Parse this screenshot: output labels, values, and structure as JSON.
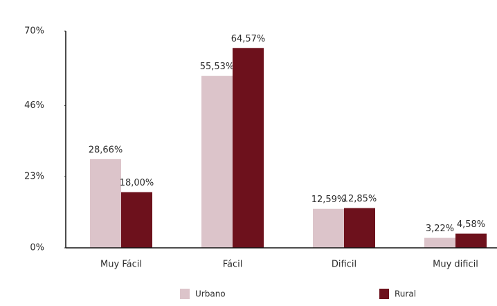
{
  "chart_data": {
    "type": "bar",
    "categories": [
      "Muy Fácil",
      "Fácil",
      "Dificil",
      "Muy dificil"
    ],
    "series": [
      {
        "name": "Urbano",
        "color": "#dcc4ca",
        "values": [
          28.66,
          55.53,
          12.59,
          3.22
        ],
        "value_labels": [
          "28,66%",
          "55,53%",
          "12,59%",
          "3,22%"
        ]
      },
      {
        "name": "Rural",
        "color": "#6d111c",
        "values": [
          18.0,
          64.57,
          12.85,
          4.58
        ],
        "value_labels": [
          "18,00%",
          "64,57%",
          "12,85%",
          "4,58%"
        ]
      }
    ],
    "ylim": [
      0,
      70
    ],
    "yticks": [
      {
        "value": 0,
        "label": "0%"
      },
      {
        "value": 23,
        "label": "23%"
      },
      {
        "value": 46,
        "label": "46%"
      },
      {
        "value": 70,
        "label": "70%"
      }
    ],
    "grid": false,
    "legend": "bottom"
  }
}
